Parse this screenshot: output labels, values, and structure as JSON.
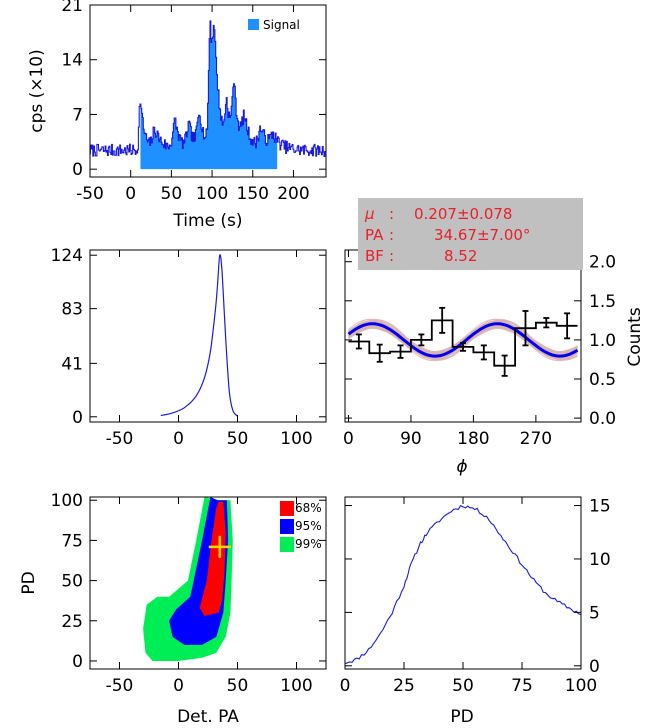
{
  "colors": {
    "blue": "#1a1adc",
    "signal_fill": "#1e90ff",
    "red": "#ff0000",
    "blue_region": "#0000ff",
    "green": "#00ee55",
    "cross": "#ffd700",
    "pink": "#d9b3b3",
    "annotation_bg": "#c0c0c0",
    "annotation_text": "#e8202a"
  },
  "chart_data": [
    {
      "id": "lightcurve",
      "type": "line",
      "xlabel": "Time (s)",
      "ylabel": "cps (×10)",
      "xlim": [
        -50,
        240
      ],
      "ylim": [
        -1,
        21
      ],
      "xticks": [
        -50,
        0,
        50,
        100,
        150,
        200
      ],
      "yticks": [
        0,
        7,
        14,
        21
      ],
      "legend": {
        "label": "Signal",
        "position": "top-right"
      },
      "signal_range": [
        12,
        180
      ],
      "background_level": 2.4,
      "series": [
        {
          "style": "pulses",
          "pulses": [
            {
              "t": 12,
              "amp": 6.5,
              "rise": 1.5,
              "decay": 5
            },
            {
              "t": 30,
              "amp": 2.5,
              "rise": 3,
              "decay": 10
            },
            {
              "t": 55,
              "amp": 3.5,
              "rise": 3,
              "decay": 6
            },
            {
              "t": 72,
              "amp": 3.0,
              "rise": 3,
              "decay": 6
            },
            {
              "t": 85,
              "amp": 4.5,
              "rise": 3,
              "decay": 6
            },
            {
              "t": 98,
              "amp": 15.5,
              "rise": 2,
              "decay": 5
            },
            {
              "t": 103,
              "amp": 10.0,
              "rise": 2,
              "decay": 7
            },
            {
              "t": 118,
              "amp": 5.0,
              "rise": 2,
              "decay": 8
            },
            {
              "t": 127,
              "amp": 7.0,
              "rise": 2,
              "decay": 5
            },
            {
              "t": 140,
              "amp": 3.5,
              "rise": 3,
              "decay": 8
            },
            {
              "t": 160,
              "amp": 2.5,
              "rise": 3,
              "decay": 10
            },
            {
              "t": 175,
              "amp": 1.5,
              "rise": 3,
              "decay": 10
            }
          ]
        }
      ]
    },
    {
      "id": "pa_posterior",
      "type": "line",
      "xlim": [
        -75,
        125
      ],
      "ylim": [
        -4,
        128
      ],
      "xticks": [
        -50,
        0,
        50,
        100
      ],
      "yticks": [
        0,
        41,
        83,
        124
      ],
      "peak": {
        "x": 35,
        "y": 124
      },
      "series": [
        {
          "points": [
            [
              -15,
              1
            ],
            [
              -5,
              3
            ],
            [
              5,
              7
            ],
            [
              15,
              16
            ],
            [
              22,
              30
            ],
            [
              27,
              50
            ],
            [
              31,
              80
            ],
            [
              33,
              100
            ],
            [
              35,
              124
            ],
            [
              37,
              110
            ],
            [
              40,
              60
            ],
            [
              43,
              20
            ],
            [
              46,
              5
            ],
            [
              50,
              0.5
            ]
          ]
        }
      ]
    },
    {
      "id": "modulation",
      "type": "line",
      "xlabel": "ϕ",
      "ylabel": "Counts",
      "xlim": [
        -5,
        335
      ],
      "ylim": [
        -0.05,
        2.15
      ],
      "xticks": [
        0,
        90,
        180,
        270
      ],
      "yticks": [
        0.0,
        0.5,
        1.0,
        1.5,
        2.0
      ],
      "annotation": {
        "mu_label": "μ",
        "mu": "0.207±0.078",
        "pa_label": "PA",
        "pa": "34.67±7.00°",
        "bf_label": "BF",
        "bf": "8.52"
      },
      "histogram": {
        "edges": [
          0,
          30,
          60,
          90,
          120,
          150,
          180,
          210,
          240,
          270,
          300,
          330
        ],
        "values": [
          0.98,
          0.83,
          0.85,
          1.0,
          1.25,
          0.91,
          0.84,
          0.67,
          1.15,
          1.22,
          1.18
        ],
        "errors": [
          0.09,
          0.11,
          0.08,
          0.07,
          0.16,
          0.05,
          0.09,
          0.13,
          0.22,
          0.06,
          0.16
        ]
      },
      "model": {
        "mean": 1.0,
        "amplitude": 0.207,
        "pa_deg": 34.67
      }
    },
    {
      "id": "contour",
      "type": "heatmap",
      "xlabel": "Det. PA",
      "ylabel": "PD",
      "xlim": [
        -75,
        125
      ],
      "ylim": [
        -5,
        102
      ],
      "xticks": [
        -50,
        0,
        50,
        100
      ],
      "yticks": [
        0,
        25,
        50,
        75,
        100
      ],
      "legend": {
        "position": "top-right"
      },
      "levels": [
        {
          "label": "99%",
          "color_key": "green",
          "polygon": [
            [
              35,
              100
            ],
            [
              44,
              100
            ],
            [
              46,
              75
            ],
            [
              45,
              50
            ],
            [
              44,
              30
            ],
            [
              40,
              15
            ],
            [
              32,
              5
            ],
            [
              20,
              2
            ],
            [
              0,
              0
            ],
            [
              -22,
              0
            ],
            [
              -28,
              5
            ],
            [
              -30,
              20
            ],
            [
              -27,
              35
            ],
            [
              -18,
              40
            ],
            [
              -8,
              40
            ],
            [
              8,
              50
            ],
            [
              15,
              75
            ],
            [
              22,
              102
            ]
          ]
        },
        {
          "label": "95%",
          "color_key": "blue_region",
          "polygon": [
            [
              33,
              100
            ],
            [
              41,
              100
            ],
            [
              42,
              75
            ],
            [
              40,
              50
            ],
            [
              38,
              30
            ],
            [
              32,
              15
            ],
            [
              20,
              10
            ],
            [
              5,
              10
            ],
            [
              -5,
              15
            ],
            [
              -8,
              25
            ],
            [
              -2,
              32
            ],
            [
              10,
              40
            ],
            [
              20,
              75
            ],
            [
              27,
              102
            ]
          ]
        },
        {
          "label": "68%",
          "color_key": "red",
          "polygon": [
            [
              34,
              99
            ],
            [
              38,
              99
            ],
            [
              40,
              80
            ],
            [
              39,
              55
            ],
            [
              37,
              38
            ],
            [
              34,
              30
            ],
            [
              22,
              28
            ],
            [
              18,
              33
            ],
            [
              24,
              50
            ],
            [
              28,
              75
            ],
            [
              32,
              95
            ]
          ]
        }
      ],
      "best_fit": {
        "x": 35,
        "y": 71
      }
    },
    {
      "id": "pd_posterior",
      "type": "line",
      "xlabel": "PD",
      "xlim": [
        0,
        100
      ],
      "ylim": [
        -0.3,
        15.8
      ],
      "xticks": [
        0,
        25,
        50,
        75,
        100
      ],
      "yticks": [
        0,
        5,
        10,
        15
      ],
      "series": [
        {
          "points": [
            [
              0,
              0.3
            ],
            [
              5,
              0.6
            ],
            [
              10,
              1.5
            ],
            [
              15,
              3.0
            ],
            [
              20,
              5.0
            ],
            [
              25,
              7.5
            ],
            [
              28,
              9.5
            ],
            [
              32,
              11.5
            ],
            [
              35,
              12.5
            ],
            [
              40,
              13.6
            ],
            [
              45,
              14.5
            ],
            [
              50,
              15.0
            ],
            [
              55,
              14.7
            ],
            [
              60,
              14.0
            ],
            [
              65,
              12.5
            ],
            [
              70,
              11.0
            ],
            [
              75,
              9.5
            ],
            [
              80,
              8.0
            ],
            [
              85,
              6.8
            ],
            [
              90,
              6.0
            ],
            [
              95,
              5.4
            ],
            [
              100,
              4.8
            ]
          ]
        }
      ]
    }
  ]
}
